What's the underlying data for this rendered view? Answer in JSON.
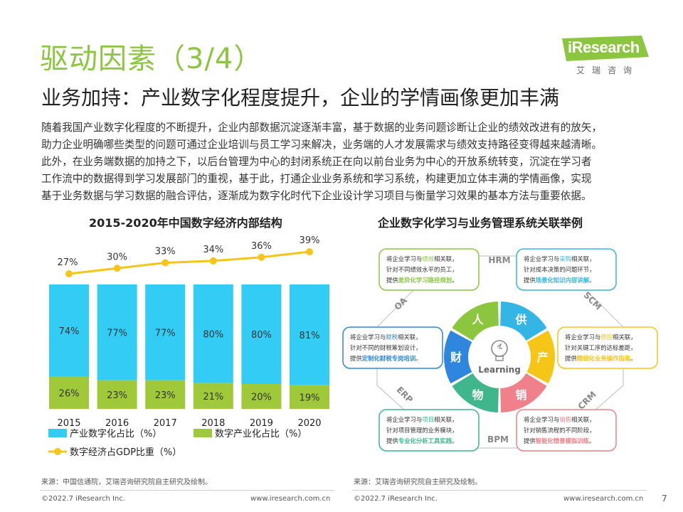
{
  "header": {
    "title": "驱动因素（3/4）",
    "subtitle": "业务加持：产业数字化程度提升，企业的学情画像更加丰满",
    "logo_text": "iResearch",
    "logo_cn": "艾瑞咨询"
  },
  "body": {
    "lines": [
      "随着我国产业数字化程度的不断提升，企业内部数据沉淀逐渐丰富，基于数据的业务问题诊断让企业的绩效改进有的放矢，",
      "助力企业明确哪些类型的问题可通过企业培训与员工学习来解决，业务端的人才发展需求与绩效支持路径变得越来越清晰。",
      "此外，在业务端数据的加持之下，以后台管理为中心的封闭系统正在向以前台业务为中心的开放系统转变，沉淀在学习者",
      "工作流中的数据得到学习发展部门的重视，基于此，打通企业业务系统和学习系统，构建更加立体丰满的学情画像，实现",
      "基于业务数据与学习数据的融合评估，逐渐成为数字化时代下企业设计学习项目与衡量学习效果的基本方法与重要依据。"
    ]
  },
  "left_chart": {
    "title": "2015-2020年中国数字经济内部结构",
    "source": "来源：中国信通院，艾瑞咨询研究院自主研究及绘制。"
  },
  "chart_data": {
    "type": "bar",
    "title": "2015-2020年中国数字经济内部结构",
    "categories": [
      "2015",
      "2016",
      "2017",
      "2018",
      "2019",
      "2020"
    ],
    "series": [
      {
        "name": "产业数字化占比（%）",
        "values": [
          74,
          77,
          77,
          80,
          80,
          81
        ],
        "color": "#33ccf5",
        "labels": [
          "74%",
          "77%",
          "77%",
          "80%",
          "80%",
          "81%"
        ]
      },
      {
        "name": "数字产业化占比（%）",
        "values": [
          26,
          23,
          23,
          21,
          20,
          19
        ],
        "color": "#a0c93a",
        "labels": [
          "26%",
          "23%",
          "23%",
          "21%",
          "20%",
          "19%"
        ]
      },
      {
        "name": "数字经济占GDP比重（%）",
        "type": "line",
        "values": [
          27,
          30,
          33,
          34,
          36,
          39
        ],
        "color": "#f5c518",
        "labels": [
          "27%",
          "30%",
          "33%",
          "34%",
          "36%",
          "39%"
        ]
      }
    ],
    "stacked": true,
    "legend_position": "bottom-left"
  },
  "right_diagram": {
    "title": "企业数字化学习与业务管理系统关联举例",
    "center_label": "Learning",
    "segments": [
      {
        "char": "人",
        "color": "#8cc63f"
      },
      {
        "char": "供",
        "color": "#33b5e5"
      },
      {
        "char": "产",
        "color": "#f5c518"
      },
      {
        "char": "销",
        "color": "#f0808a"
      },
      {
        "char": "物",
        "color": "#3fb68b"
      },
      {
        "char": "财",
        "color": "#2e86de"
      }
    ],
    "systems": [
      "HRM",
      "SCM",
      "CRM",
      "BPM",
      "ERP",
      "OA"
    ],
    "boxes": [
      {
        "l1a": "将企业学习与",
        "kw": "绩效",
        "l1b": "相关联，",
        "l2": "针对不同绩效水平的员工，",
        "l3a": "提供",
        "l3kw": "差异化学习路径规划",
        "l3b": "。",
        "color": "#8cc63f"
      },
      {
        "l1a": "将企业学习与",
        "kw": "采购",
        "l1b": "相关联，",
        "l2": "针对成本决策的问题环节，",
        "l3a": "提供",
        "l3kw": "场景化知识内容讲解",
        "l3b": "。",
        "color": "#33b5e5"
      },
      {
        "l1a": "将企业学习与",
        "kw": "财税",
        "l1b": "相关联，",
        "l2": "针对不同的财税筹划设计，",
        "l3a": "提供",
        "l3kw": "定制化财税专岗培训",
        "l3b": "。",
        "color": "#2e86de"
      },
      {
        "l1a": "将企业学习与",
        "kw": "质控",
        "l1b": "相关联，",
        "l2": "针对关键工序的达标差距，",
        "l3a": "提供",
        "l3kw": "精细化业务操作指南",
        "l3b": "。",
        "color": "#f5c518"
      },
      {
        "l1a": "将企业学习与",
        "kw": "项目",
        "l1b": "相关联，",
        "l2": "针对项目管理的业务模块，",
        "l3a": "提供",
        "l3kw": "专业化分析工具实践",
        "l3b": "。",
        "color": "#3fb68b"
      },
      {
        "l1a": "将企业学习与",
        "kw": "销售",
        "l1b": "相关联，",
        "l2": "针对销售流程的不同阶段，",
        "l3a": "提供",
        "l3kw": "智能化情景模拟训练",
        "l3b": "。",
        "color": "#f0808a"
      }
    ],
    "source": "来源：艾瑞咨询研究院自主研究及绘制。"
  },
  "footer": {
    "copyright_left": "©2022.7 iResearch Inc.",
    "url_left": "www.iresearch.com.cn",
    "copyright_right": "©2022.7 iResearch Inc.",
    "url_right": "www.iresearch.com.cn",
    "page": "7"
  }
}
